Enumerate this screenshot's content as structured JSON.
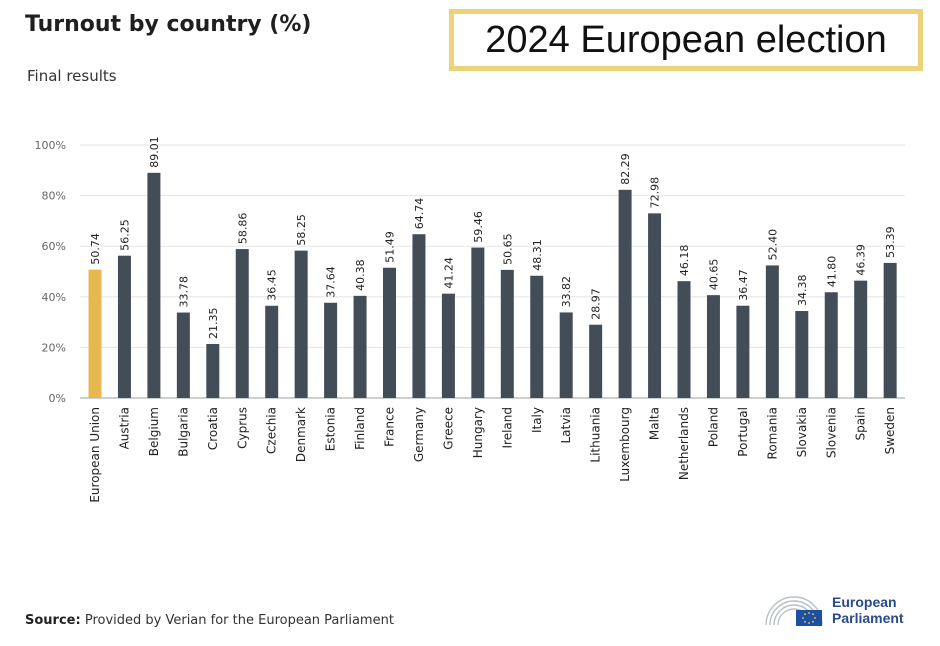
{
  "header": {
    "title": "Turnout by country (%)",
    "subtitle": "Final results",
    "banner": "2024 European election"
  },
  "footer": {
    "source_label": "Source:",
    "source_text": "Provided by Verian for the European Parliament",
    "logo_line1": "European",
    "logo_line2": "Parliament"
  },
  "colors": {
    "highlight": "#e6b84f",
    "bar": "#434d58",
    "grid": "#e3e6ea",
    "axis": "#9aa0a6",
    "tick": "#666666"
  },
  "chart_data": {
    "type": "bar",
    "title": "Turnout by country (%)",
    "subtitle": "Final results",
    "xlabel": "",
    "ylabel": "",
    "ylim": [
      0,
      100
    ],
    "yticks": [
      "0%",
      "20%",
      "40%",
      "60%",
      "80%",
      "100%"
    ],
    "grid": true,
    "categories": [
      "European Union",
      "Austria",
      "Belgium",
      "Bulgaria",
      "Croatia",
      "Cyprus",
      "Czechia",
      "Denmark",
      "Estonia",
      "Finland",
      "France",
      "Germany",
      "Greece",
      "Hungary",
      "Ireland",
      "Italy",
      "Latvia",
      "Lithuania",
      "Luxembourg",
      "Malta",
      "Netherlands",
      "Poland",
      "Portugal",
      "Romania",
      "Slovakia",
      "Slovenia",
      "Spain",
      "Sweden"
    ],
    "values": [
      50.74,
      56.25,
      89.01,
      33.78,
      21.35,
      58.86,
      36.45,
      58.25,
      37.64,
      40.38,
      51.49,
      64.74,
      41.24,
      59.46,
      50.65,
      48.31,
      33.82,
      28.97,
      82.29,
      72.98,
      46.18,
      40.65,
      36.47,
      52.4,
      34.38,
      41.8,
      46.39,
      53.39
    ],
    "labels": [
      "50.74",
      "56.25",
      "89.01",
      "33.78",
      "21.35",
      "58.86",
      "36.45",
      "58.25",
      "37.64",
      "40.38",
      "51.49",
      "64.74",
      "41.24",
      "59.46",
      "50.65",
      "48.31",
      "33.82",
      "28.97",
      "82.29",
      "72.98",
      "46.18",
      "40.65",
      "36.47",
      "52.40",
      "34.38",
      "41.80",
      "46.39",
      "53.39"
    ],
    "highlight_category": "European Union"
  }
}
